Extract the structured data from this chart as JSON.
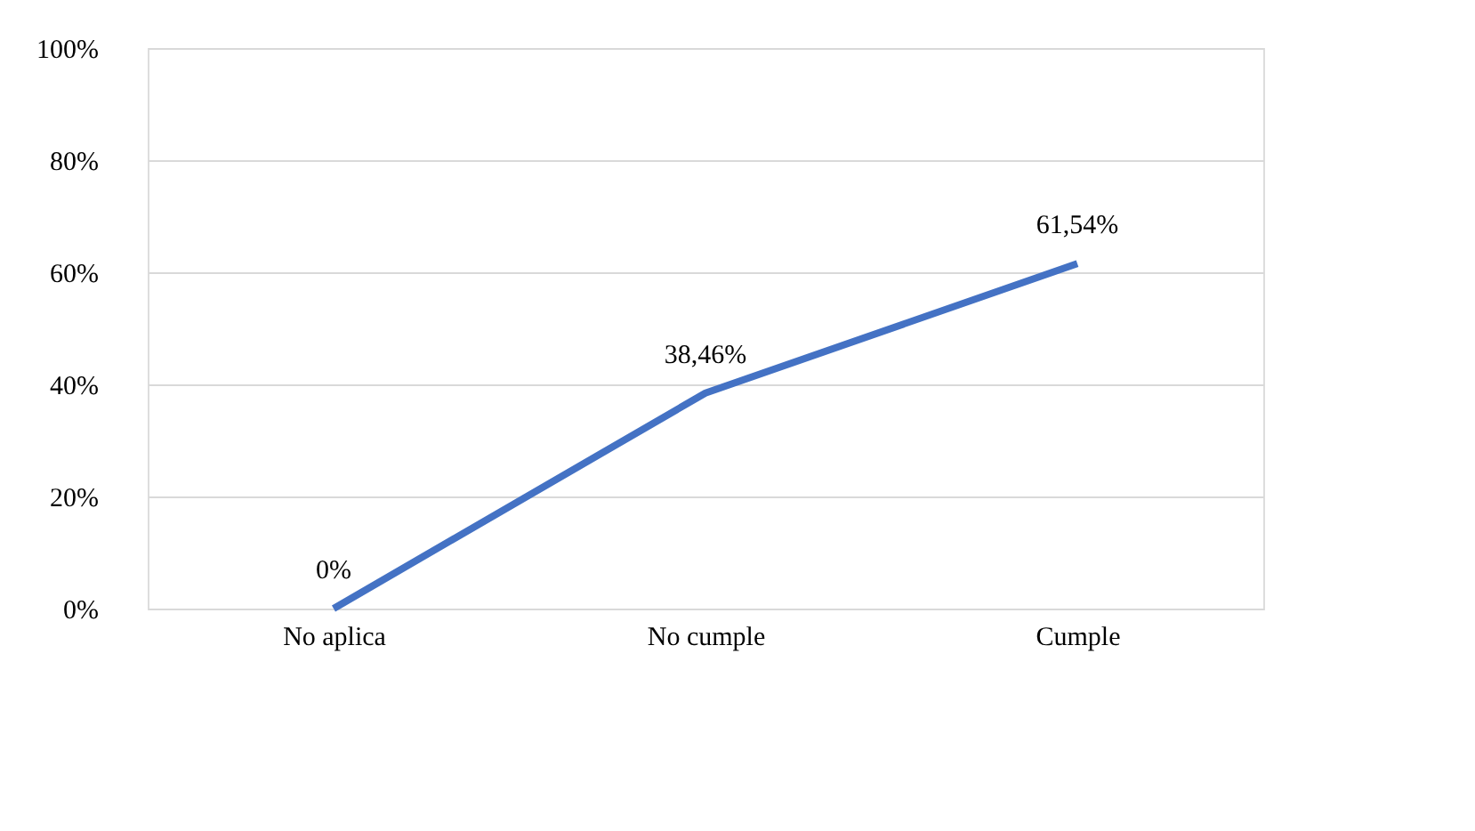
{
  "chart_data": {
    "type": "line",
    "categories": [
      "No aplica",
      "No cumple",
      "Cumple"
    ],
    "series": [
      {
        "color": "#4472c4",
        "values": [
          0,
          38.46,
          61.54
        ]
      }
    ],
    "value_labels": [
      "0%",
      "38,46%",
      "61,54%"
    ],
    "ylim": [
      0,
      100
    ],
    "yticks": [
      {
        "value": 0,
        "label": "0%"
      },
      {
        "value": 20,
        "label": "20%"
      },
      {
        "value": 40,
        "label": "40%"
      },
      {
        "value": 60,
        "label": "60%"
      },
      {
        "value": 80,
        "label": "80%"
      },
      {
        "value": 100,
        "label": "100%"
      }
    ],
    "grid": "y",
    "marker": "none",
    "line_style": "solid"
  }
}
